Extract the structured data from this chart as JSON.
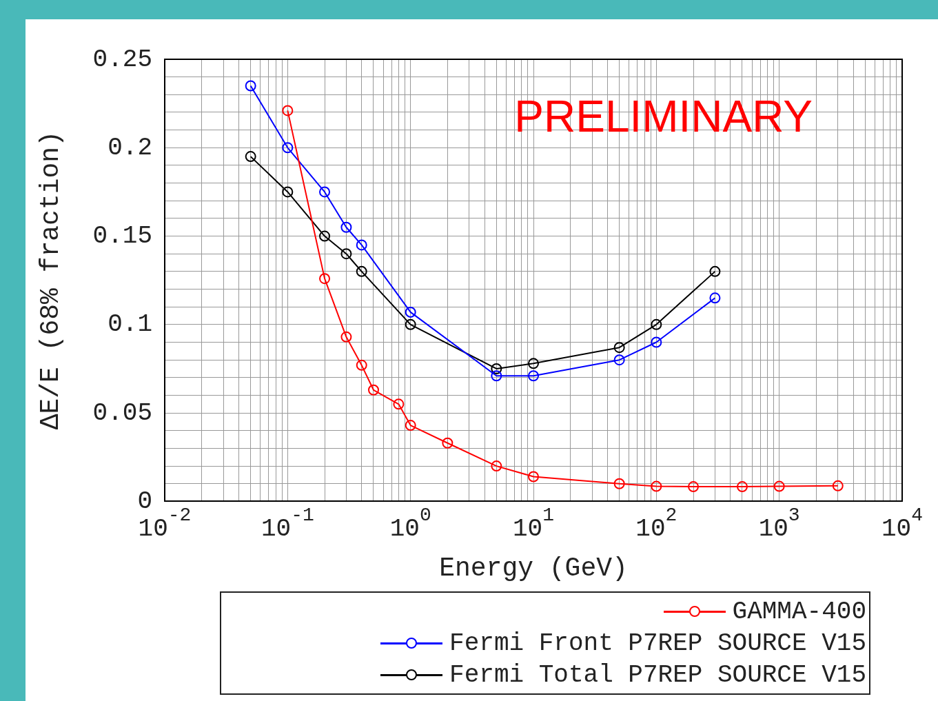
{
  "chart_data": {
    "type": "line",
    "xlabel": "Energy (GeV)",
    "ylabel": "ΔE/E (68% fraction)",
    "log": "x",
    "grid": true,
    "marker": "circle",
    "legend": "bottom",
    "annotations": [
      "PRELIMINARY"
    ],
    "xlim": [
      0.01,
      10000
    ],
    "xticks": [
      {
        "value": 0.01,
        "label": "10$^{-2}$"
      },
      {
        "value": 0.02,
        "label": null
      },
      {
        "value": 0.03,
        "label": null
      },
      {
        "value": 0.04,
        "label": null
      },
      {
        "value": 0.05,
        "label": null
      },
      {
        "value": 0.06,
        "label": null
      },
      {
        "value": 0.07,
        "label": null
      },
      {
        "value": 0.08,
        "label": null
      },
      {
        "value": 0.09,
        "label": null
      },
      {
        "value": 0.1,
        "label": "10$^{-1}$"
      },
      {
        "value": 0.2,
        "label": null
      },
      {
        "value": 0.3,
        "label": null
      },
      {
        "value": 0.4,
        "label": null
      },
      {
        "value": 0.5,
        "label": null
      },
      {
        "value": 0.6,
        "label": null
      },
      {
        "value": 0.7,
        "label": null
      },
      {
        "value": 0.8,
        "label": null
      },
      {
        "value": 0.9,
        "label": null
      },
      {
        "value": 1,
        "label": "10$^{0}$"
      },
      {
        "value": 2,
        "label": null
      },
      {
        "value": 3,
        "label": null
      },
      {
        "value": 4,
        "label": null
      },
      {
        "value": 5,
        "label": null
      },
      {
        "value": 6,
        "label": null
      },
      {
        "value": 7,
        "label": null
      },
      {
        "value": 8,
        "label": null
      },
      {
        "value": 9,
        "label": null
      },
      {
        "value": 10,
        "label": "10$^{1}$"
      },
      {
        "value": 20,
        "label": null
      },
      {
        "value": 30,
        "label": null
      },
      {
        "value": 40,
        "label": null
      },
      {
        "value": 50,
        "label": null
      },
      {
        "value": 60,
        "label": null
      },
      {
        "value": 70,
        "label": null
      },
      {
        "value": 80,
        "label": null
      },
      {
        "value": 90,
        "label": null
      },
      {
        "value": 100,
        "label": "10$^{2}$"
      },
      {
        "value": 200,
        "label": null
      },
      {
        "value": 300,
        "label": null
      },
      {
        "value": 400,
        "label": null
      },
      {
        "value": 500,
        "label": null
      },
      {
        "value": 600,
        "label": null
      },
      {
        "value": 700,
        "label": null
      },
      {
        "value": 800,
        "label": null
      },
      {
        "value": 900,
        "label": null
      },
      {
        "value": 1000,
        "label": "10$^{3}$"
      },
      {
        "value": 2000,
        "label": null
      },
      {
        "value": 3000,
        "label": null
      },
      {
        "value": 4000,
        "label": null
      },
      {
        "value": 5000,
        "label": null
      },
      {
        "value": 6000,
        "label": null
      },
      {
        "value": 7000,
        "label": null
      },
      {
        "value": 8000,
        "label": null
      },
      {
        "value": 9000,
        "label": null
      },
      {
        "value": 10000,
        "label": "10$^{4}$"
      }
    ],
    "ylim": [
      0,
      0.25
    ],
    "yticks": [
      0,
      {
        "value": 0.01,
        "label": null
      },
      {
        "value": 0.02,
        "label": null
      },
      {
        "value": 0.03,
        "label": null
      },
      {
        "value": 0.04,
        "label": null
      },
      0.05,
      {
        "value": 0.06,
        "label": null
      },
      {
        "value": 0.07,
        "label": null
      },
      {
        "value": 0.08,
        "label": null
      },
      {
        "value": 0.09,
        "label": null
      },
      0.1,
      {
        "value": 0.11,
        "label": null
      },
      {
        "value": 0.12,
        "label": null
      },
      {
        "value": 0.13,
        "label": null
      },
      {
        "value": 0.14,
        "label": null
      },
      0.15,
      {
        "value": 0.16,
        "label": null
      },
      {
        "value": 0.17,
        "label": null
      },
      {
        "value": 0.18,
        "label": null
      },
      {
        "value": 0.19,
        "label": null
      },
      0.2,
      {
        "value": 0.21,
        "label": null
      },
      {
        "value": 0.22,
        "label": null
      },
      {
        "value": 0.23,
        "label": null
      },
      {
        "value": 0.24,
        "label": null
      },
      0.25
    ],
    "series": [
      {
        "name": "GAMMA-400",
        "color": "#ff0000",
        "x": [
          0.1,
          0.2,
          0.3,
          0.4,
          0.5,
          0.8,
          1,
          2,
          5,
          10,
          50,
          100,
          200,
          500,
          1000,
          3000
        ],
        "values": [
          0.221,
          0.126,
          0.093,
          0.077,
          0.063,
          0.055,
          0.043,
          0.033,
          0.02,
          0.014,
          0.01,
          0.0085,
          0.0083,
          0.0083,
          0.0085,
          0.0088
        ]
      },
      {
        "name": "Fermi Front P7REP SOURCE V15",
        "color": "#0000ff",
        "x": [
          0.05,
          0.1,
          0.2,
          0.3,
          0.4,
          1,
          5,
          10,
          50,
          100,
          300
        ],
        "values": [
          0.235,
          0.2,
          0.175,
          0.155,
          0.145,
          0.107,
          0.071,
          0.071,
          0.08,
          0.09,
          0.115
        ]
      },
      {
        "name": "Fermi Total P7REP SOURCE V15",
        "color": "#000000",
        "x": [
          0.05,
          0.1,
          0.2,
          0.3,
          0.4,
          1,
          5,
          10,
          50,
          100,
          300
        ],
        "values": [
          0.195,
          0.175,
          0.15,
          0.14,
          0.13,
          0.1,
          0.075,
          0.078,
          0.087,
          0.1,
          0.13
        ]
      }
    ]
  }
}
